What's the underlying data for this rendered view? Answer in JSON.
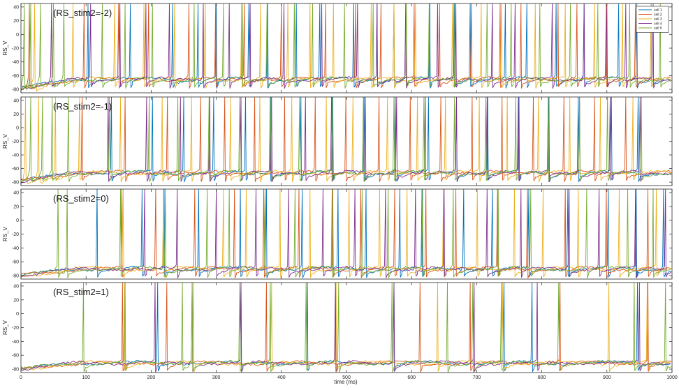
{
  "figure": {
    "xlabel": "time (ms)",
    "legend": {
      "placement": "top-right",
      "entries": [
        {
          "label": "cell 1",
          "color": "#0072bd"
        },
        {
          "label": "cell 2",
          "color": "#d95319"
        },
        {
          "label": "cell 3",
          "color": "#edb120"
        },
        {
          "label": "cell 4",
          "color": "#7e2f8e"
        },
        {
          "label": "cell 5",
          "color": "#77ac30"
        }
      ]
    }
  },
  "chart_data": [
    {
      "type": "line",
      "title": "(RS_stim2=-2)",
      "ylabel": "RS_V",
      "xlim": [
        0,
        1000
      ],
      "ylim": [
        -85,
        45
      ],
      "yticks": [
        -80,
        -60,
        -40,
        -20,
        0,
        20,
        40
      ],
      "grid": false,
      "baseline_mV": -65,
      "resting_start_mV": -78,
      "peak_mV": 45,
      "series": [
        {
          "name": "cell 1",
          "spike_times": [
            103,
            168,
            233,
            272,
            300,
            350,
            379,
            423,
            459,
            511,
            547,
            573,
            628,
            666,
            690,
            744,
            777,
            822,
            865,
            918,
            946,
            968
          ]
        },
        {
          "name": "cell 2",
          "spike_times": [
            13,
            97,
            150,
            196,
            258,
            299,
            343,
            400,
            468,
            514,
            553,
            604,
            643,
            692,
            736,
            768,
            825,
            854,
            899,
            944
          ]
        },
        {
          "name": "cell 3",
          "spike_times": [
            21,
            80,
            144,
            189,
            236,
            283,
            339,
            368,
            410,
            444,
            480,
            538,
            573,
            606,
            663,
            707,
            738,
            790,
            836,
            881,
            924,
            968
          ]
        },
        {
          "name": "cell 4",
          "spike_times": [
            47,
            107,
            152,
            192,
            228,
            280,
            320,
            352,
            404,
            462,
            517,
            547,
            591,
            640,
            668,
            724,
            759,
            816,
            865,
            900,
            929,
            971
          ]
        },
        {
          "name": "cell 5",
          "spike_times": [
            5,
            15,
            30,
            50,
            66,
            125,
            160,
            202,
            266,
            311,
            340,
            378,
            420,
            448,
            497,
            541,
            592,
            627,
            665,
            716,
            753,
            797,
            844,
            886,
            935,
            982
          ]
        }
      ]
    },
    {
      "type": "line",
      "title": "(RS_stim2=-1)",
      "ylabel": "RS_V",
      "xlim": [
        0,
        1000
      ],
      "ylim": [
        -85,
        45
      ],
      "yticks": [
        -80,
        -60,
        -40,
        -20,
        0,
        20,
        40
      ],
      "grid": false,
      "baseline_mV": -66,
      "resting_start_mV": -78,
      "peak_mV": 45,
      "series": [
        {
          "name": "cell 1",
          "spike_times": [
            139,
            202,
            250,
            296,
            345,
            383,
            430,
            479,
            527,
            575,
            626,
            669,
            717,
            765,
            811,
            856,
            907,
            948
          ]
        },
        {
          "name": "cell 2",
          "spike_times": [
            94,
            160,
            225,
            276,
            313,
            359,
            405,
            452,
            499,
            550,
            598,
            645,
            693,
            739,
            787,
            834,
            881,
            929
          ]
        },
        {
          "name": "cell 3",
          "spike_times": [
            7,
            27,
            53,
            90,
            153,
            217,
            262,
            322,
            367,
            416,
            469,
            510,
            563,
            609,
            652,
            704,
            747,
            795,
            843,
            890,
            940
          ]
        },
        {
          "name": "cell 4",
          "spike_times": [
            134,
            193,
            245,
            290,
            338,
            385,
            437,
            477,
            529,
            577,
            621,
            669,
            716,
            764,
            810,
            858,
            905,
            951
          ]
        },
        {
          "name": "cell 5",
          "spike_times": [
            15,
            33,
            48,
            73,
            136,
            197,
            241,
            289,
            336,
            384,
            428,
            478,
            526,
            573,
            619,
            666,
            714,
            760,
            810,
            858,
            901,
            953
          ]
        }
      ]
    },
    {
      "type": "line",
      "title": "(RS_stim2=0)",
      "ylabel": "RS_V",
      "xlim": [
        0,
        1000
      ],
      "ylim": [
        -85,
        45
      ],
      "yticks": [
        -80,
        -60,
        -40,
        -20,
        0,
        20,
        40
      ],
      "grid": false,
      "baseline_mV": -70,
      "resting_start_mV": -80,
      "peak_mV": 45,
      "series": [
        {
          "name": "cell 1",
          "spike_times": [
            117,
            186,
            220,
            273,
            337,
            377,
            432,
            487,
            530,
            582,
            616,
            680,
            724,
            780,
            840,
            902,
            945,
            987
          ]
        },
        {
          "name": "cell 2",
          "spike_times": [
            155,
            207,
            267,
            328,
            373,
            427,
            479,
            522,
            574,
            622,
            668,
            732,
            778,
            836,
            899,
            963
          ]
        },
        {
          "name": "cell 3",
          "spike_times": [
            157,
            219,
            311,
            346,
            398,
            444,
            504,
            551,
            593,
            649,
            701,
            758,
            802,
            856,
            919,
            976
          ]
        },
        {
          "name": "cell 4",
          "spike_times": [
            190,
            240,
            300,
            361,
            411,
            464,
            513,
            560,
            606,
            650,
            716,
            768,
            842,
            888,
            944,
            990
          ]
        },
        {
          "name": "cell 5",
          "spike_times": [
            57,
            71,
            153,
            222,
            286,
            320,
            375,
            421,
            478,
            524,
            564,
            617,
            664,
            733,
            783,
            869,
            932,
            971
          ]
        }
      ]
    },
    {
      "type": "line",
      "title": "(RS_stim2=1)",
      "ylabel": "RS_V",
      "xlim": [
        0,
        1000
      ],
      "ylim": [
        -85,
        45
      ],
      "yticks": [
        -80,
        -60,
        -40,
        -20,
        0,
        20,
        40
      ],
      "grid": false,
      "baseline_mV": -71,
      "resting_start_mV": -80,
      "peak_mV": 45,
      "series": [
        {
          "name": "cell 1",
          "spike_times": [
            210,
            338,
            440,
            573,
            742,
            785,
            947
          ]
        },
        {
          "name": "cell 2",
          "spike_times": [
            156,
            224,
            377,
            613,
            690,
            828,
            963
          ]
        },
        {
          "name": "cell 3",
          "spike_times": [
            159,
            265,
            385,
            484,
            640,
            740,
            903,
            962
          ]
        },
        {
          "name": "cell 4",
          "spike_times": [
            206,
            263,
            338,
            483,
            573,
            696,
            793,
            950
          ]
        },
        {
          "name": "cell 5",
          "spike_times": [
            96,
            160,
            248,
            263,
            336,
            383,
            438,
            488,
            570,
            655,
            694,
            738,
            826,
            942,
            990
          ]
        }
      ]
    }
  ]
}
